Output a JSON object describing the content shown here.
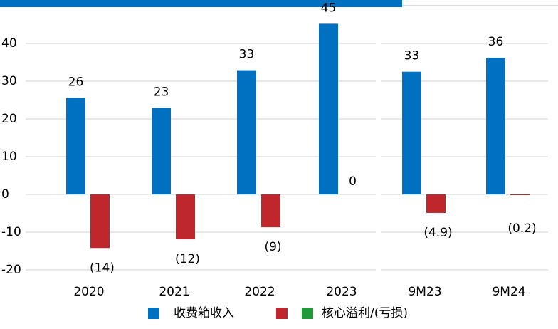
{
  "chart_data": {
    "type": "bar",
    "categories": [
      "2020",
      "2021",
      "2022",
      "2023",
      "9M23",
      "9M24"
    ],
    "series": [
      {
        "name": "收费箱收入",
        "color": "#0070c0",
        "values": [
          25.6,
          22.9,
          32.9,
          45.2,
          32.5,
          36.2
        ],
        "value_labels": [
          "26",
          "23",
          "33",
          "45",
          "33",
          "36"
        ]
      },
      {
        "name": "核心溢利/(亏损)",
        "color": "#c0272d",
        "values": [
          -14.2,
          -11.9,
          -8.7,
          0,
          -4.9,
          -0.2
        ],
        "value_labels": [
          "(14)",
          "(12)",
          "(9)",
          "0",
          "(4.9)",
          "(0.2)"
        ]
      }
    ],
    "ylim": [
      -20,
      51.5
    ],
    "yticks": [
      -20,
      -10,
      0,
      10,
      20,
      30,
      40
    ],
    "grid": true
  }
}
